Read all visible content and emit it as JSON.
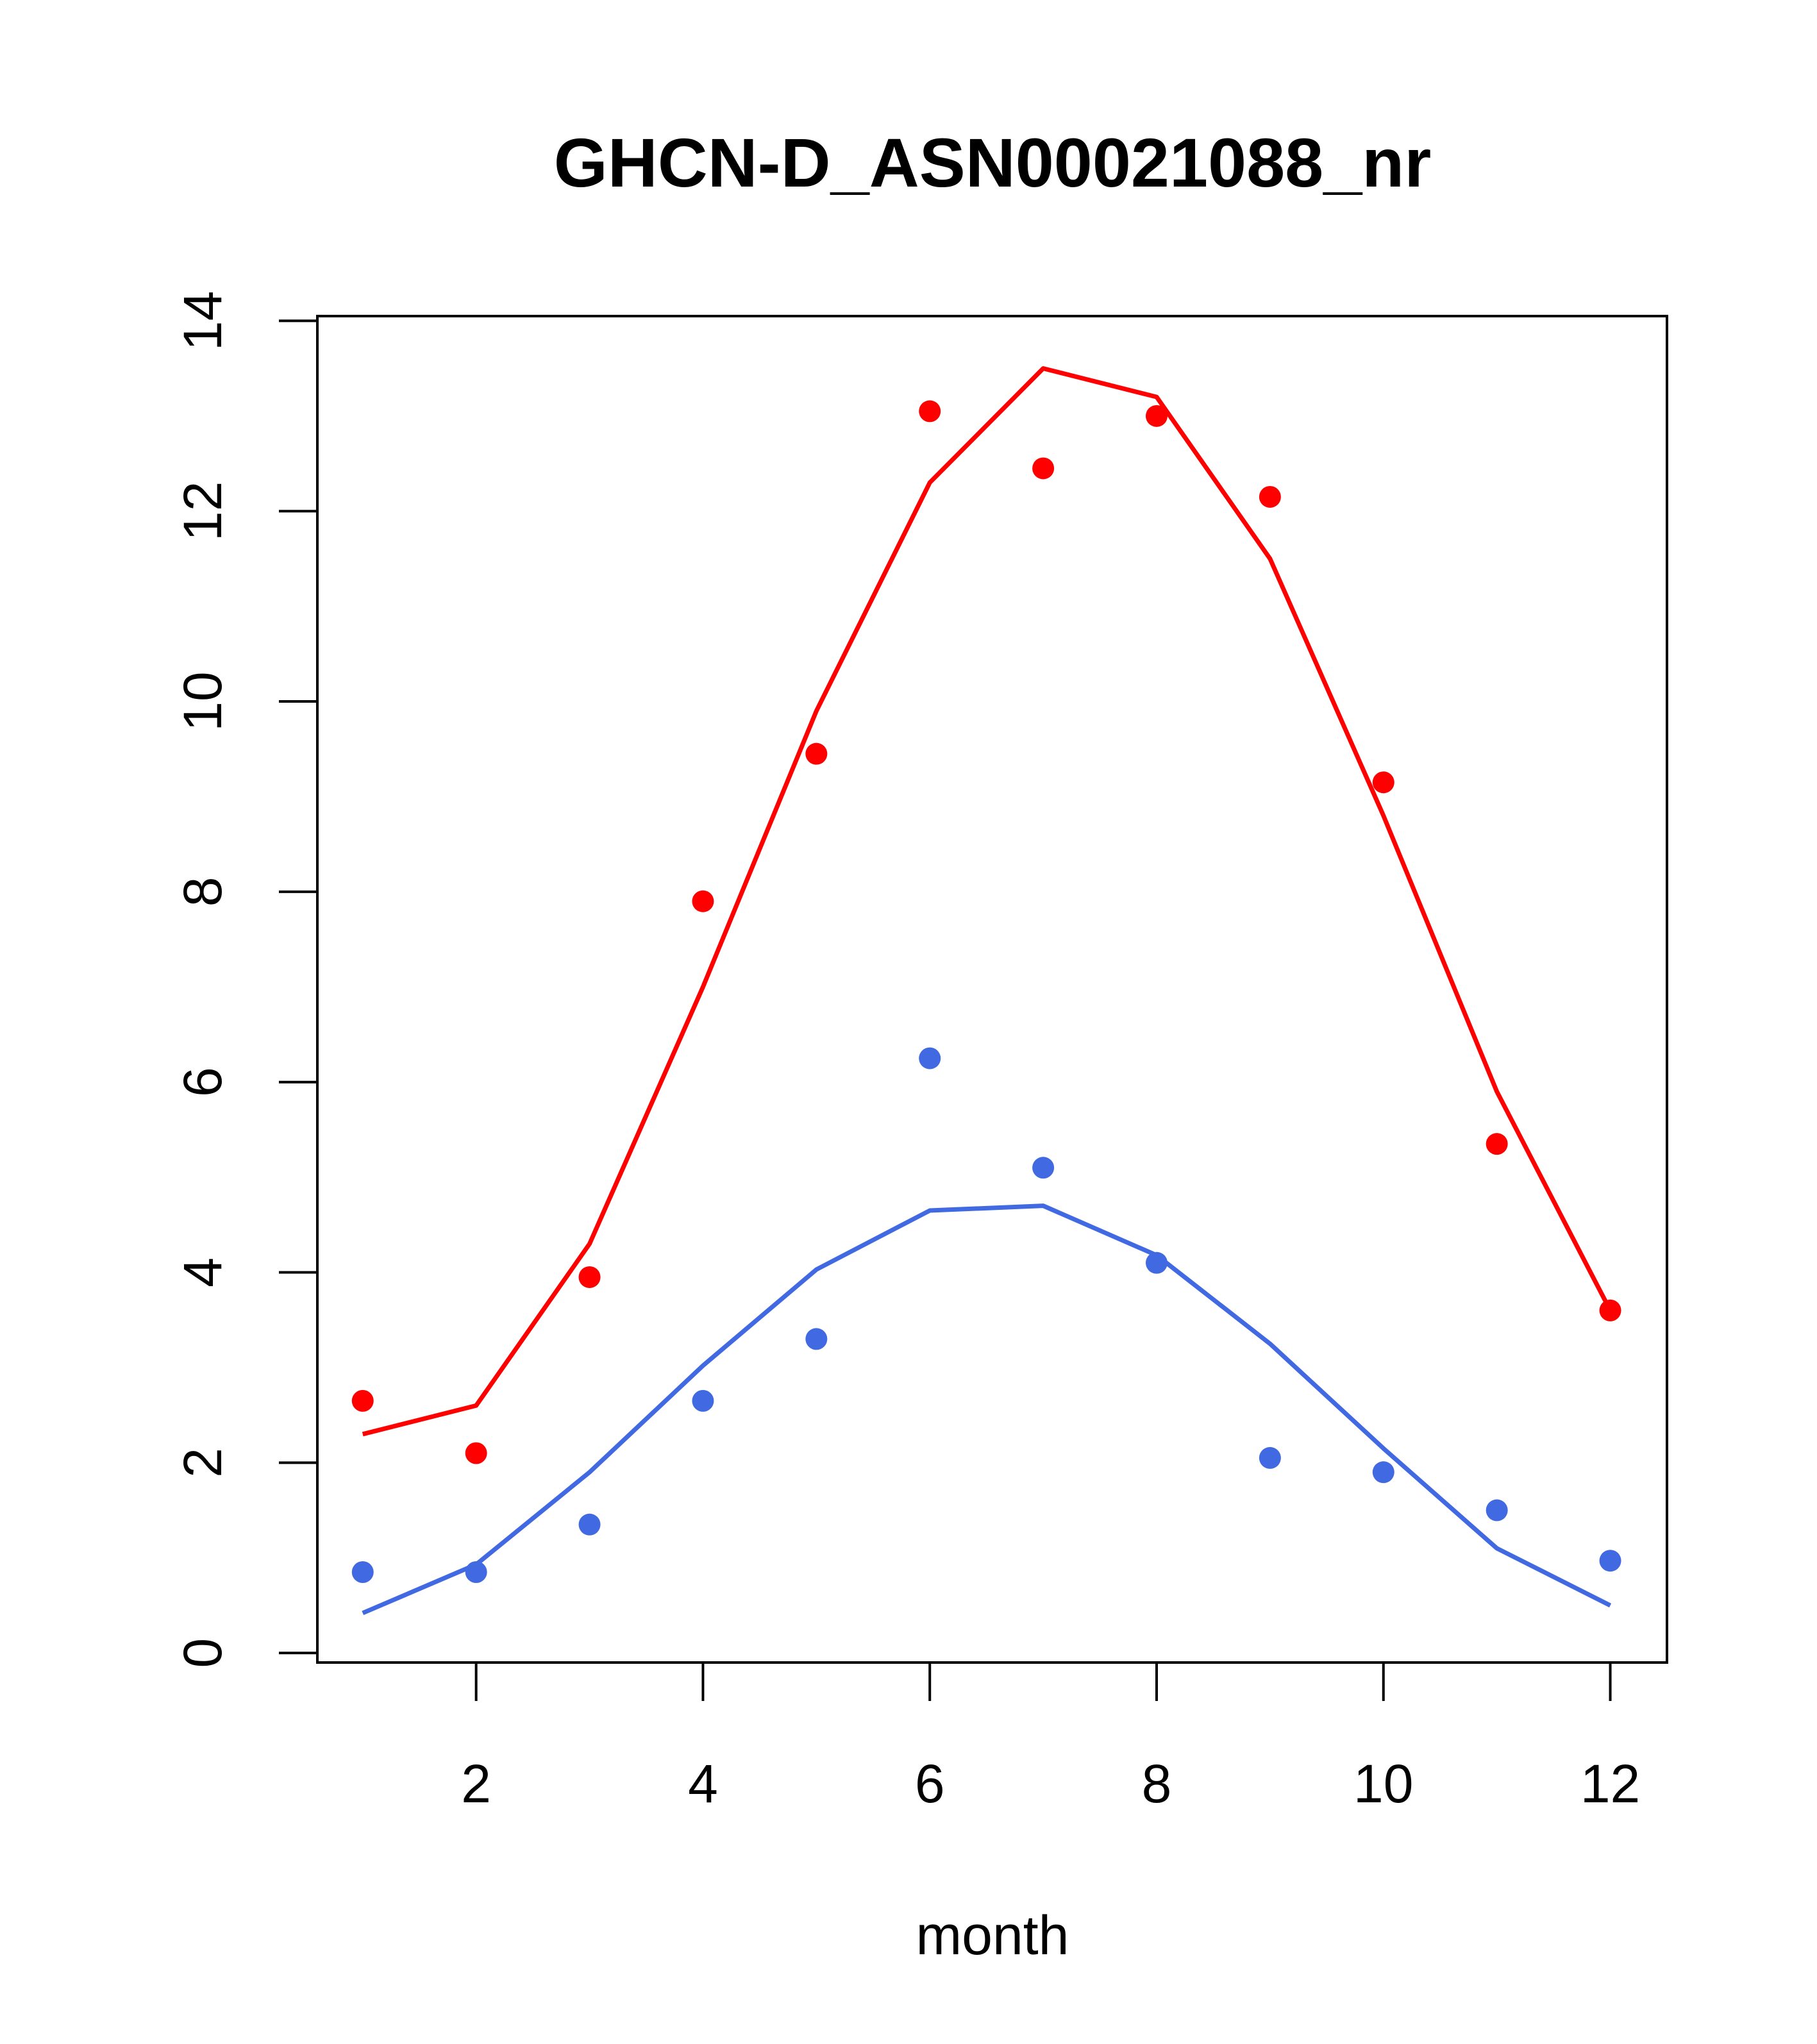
{
  "chart_data": {
    "type": "scatter",
    "title": "GHCN-D_ASN00021088_nr",
    "xlabel": "month",
    "ylabel": "",
    "xlim": [
      0.6,
      12.5
    ],
    "ylim": [
      -0.1,
      14.05
    ],
    "xticks": [
      2,
      4,
      6,
      8,
      10,
      12
    ],
    "yticks": [
      0,
      2,
      4,
      6,
      8,
      10,
      12,
      14
    ],
    "x": [
      1,
      2,
      3,
      4,
      5,
      6,
      7,
      8,
      9,
      10,
      11,
      12
    ],
    "series": [
      {
        "color": "#ff0000",
        "points": [
          2.65,
          2.1,
          3.95,
          7.9,
          9.45,
          13.05,
          12.45,
          13.0,
          12.15,
          9.15,
          5.35,
          3.6
        ],
        "line": [
          2.3,
          2.6,
          4.3,
          7.0,
          9.9,
          12.3,
          13.5,
          13.2,
          11.5,
          8.8,
          5.9,
          3.6
        ]
      },
      {
        "color": "#4169e1",
        "points": [
          0.85,
          0.85,
          1.35,
          2.65,
          3.3,
          6.25,
          5.1,
          4.1,
          2.05,
          1.9,
          1.5,
          0.97
        ],
        "line": [
          0.42,
          0.93,
          1.9,
          3.02,
          4.03,
          4.65,
          4.7,
          4.18,
          3.25,
          2.15,
          1.1,
          0.5
        ]
      }
    ],
    "grid": false,
    "legend": "none"
  }
}
